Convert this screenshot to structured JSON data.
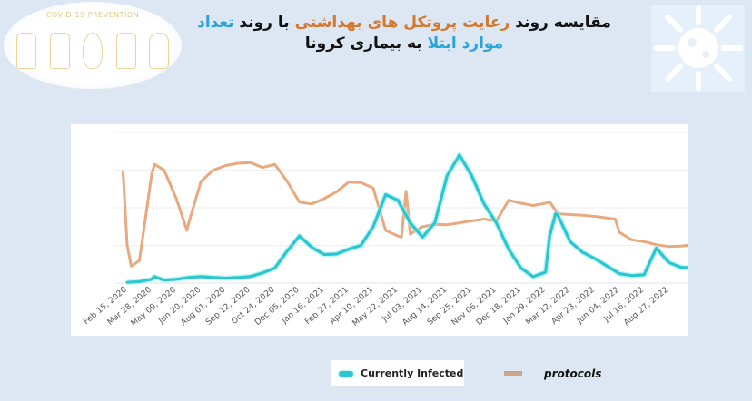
{
  "logo": {
    "text": "COVID-19 PREVENTION",
    "icons": [
      "hand-sanitizer-icon",
      "keep-distance-icon",
      "face-mask-icon",
      "disinfect-surface-icon",
      "hand-stop-icon"
    ]
  },
  "decor": {
    "icon": "virus-icon"
  },
  "title": {
    "part1": "مقایسه روند ",
    "part2": "رعایت پروتکل های بهداشتی",
    "part3": " با روند ",
    "part4": "تعداد موارد ابتلا",
    "part5": " به بیماری کرونا"
  },
  "colors": {
    "infected": "#2bc6cf",
    "protocols": "#e8a97e",
    "title_orange": "#d4782e",
    "title_blue": "#2ba3d9",
    "background": "#dce7f3"
  },
  "chart_data": {
    "type": "line",
    "title": "",
    "xlabel": "",
    "ylabel": "",
    "grid": true,
    "y_ticks_shown": false,
    "ylim": [
      0,
      4
    ],
    "legend_placement": "bottom",
    "x_ticks": [
      "Feb 15, 2020",
      "Mar 28, 2020",
      "May 09, 2020",
      "Jun 20, 2020",
      "Aug 01, 2020",
      "Sep 12, 2020",
      "Oct 24, 2020",
      "Dec 05, 2020",
      "Jan 16, 2021",
      "Feb 27, 2021",
      "Apr 10, 2021",
      "May 22, 2021",
      "Jul 03, 2021",
      "Aug 14, 2021",
      "Sep 25, 2021",
      "Nov 06, 2021",
      "Dec 18, 2021",
      "Jan 29, 2022",
      "Mar 12, 2022",
      "Apr 23, 2022",
      "Jun 04, 2022",
      "Jul 16, 2022",
      "Aug 27, 2022"
    ],
    "series": [
      {
        "name": "Currently Infected",
        "color": "#2bc6cf",
        "points": [
          [
            "2020-02-15",
            0.02
          ],
          [
            "2020-03-07",
            0.04
          ],
          [
            "2020-03-28",
            0.1
          ],
          [
            "2020-04-01",
            0.17
          ],
          [
            "2020-04-18",
            0.08
          ],
          [
            "2020-05-09",
            0.1
          ],
          [
            "2020-05-30",
            0.15
          ],
          [
            "2020-06-20",
            0.17
          ],
          [
            "2020-07-11",
            0.15
          ],
          [
            "2020-08-01",
            0.13
          ],
          [
            "2020-08-22",
            0.15
          ],
          [
            "2020-09-12",
            0.17
          ],
          [
            "2020-10-03",
            0.27
          ],
          [
            "2020-10-24",
            0.4
          ],
          [
            "2020-11-14",
            0.85
          ],
          [
            "2020-12-05",
            1.25
          ],
          [
            "2020-12-26",
            0.95
          ],
          [
            "2021-01-16",
            0.76
          ],
          [
            "2021-02-06",
            0.77
          ],
          [
            "2021-02-27",
            0.9
          ],
          [
            "2021-03-20",
            1.0
          ],
          [
            "2021-04-10",
            1.5
          ],
          [
            "2021-05-01",
            2.35
          ],
          [
            "2021-05-22",
            2.2
          ],
          [
            "2021-06-12",
            1.6
          ],
          [
            "2021-07-03",
            1.22
          ],
          [
            "2021-07-24",
            1.6
          ],
          [
            "2021-08-14",
            2.85
          ],
          [
            "2021-09-04",
            3.4
          ],
          [
            "2021-09-25",
            2.85
          ],
          [
            "2021-10-16",
            2.1
          ],
          [
            "2021-11-06",
            1.6
          ],
          [
            "2021-11-27",
            0.9
          ],
          [
            "2021-12-18",
            0.4
          ],
          [
            "2022-01-08",
            0.17
          ],
          [
            "2022-01-29",
            0.29
          ],
          [
            "2022-02-05",
            1.25
          ],
          [
            "2022-02-15",
            1.84
          ],
          [
            "2022-02-19",
            1.8
          ],
          [
            "2022-03-12",
            1.1
          ],
          [
            "2022-04-02",
            0.82
          ],
          [
            "2022-04-23",
            0.65
          ],
          [
            "2022-05-14",
            0.45
          ],
          [
            "2022-06-04",
            0.25
          ],
          [
            "2022-06-25",
            0.2
          ],
          [
            "2022-07-16",
            0.22
          ],
          [
            "2022-08-06",
            0.93
          ],
          [
            "2022-08-27",
            0.55
          ],
          [
            "2022-09-17",
            0.42
          ],
          [
            "2022-09-28",
            0.41
          ]
        ]
      },
      {
        "name": "protocols",
        "color": "#e8a97e",
        "points": [
          [
            "2020-02-08",
            2.95
          ],
          [
            "2020-02-15",
            1.0
          ],
          [
            "2020-02-22",
            0.45
          ],
          [
            "2020-03-07",
            0.6
          ],
          [
            "2020-03-28",
            2.9
          ],
          [
            "2020-04-02",
            3.15
          ],
          [
            "2020-04-18",
            3.0
          ],
          [
            "2020-05-09",
            2.24
          ],
          [
            "2020-05-27",
            1.4
          ],
          [
            "2020-05-30",
            1.6
          ],
          [
            "2020-06-20",
            2.7
          ],
          [
            "2020-07-11",
            3.0
          ],
          [
            "2020-08-01",
            3.12
          ],
          [
            "2020-08-22",
            3.18
          ],
          [
            "2020-09-12",
            3.2
          ],
          [
            "2020-10-03",
            3.07
          ],
          [
            "2020-10-24",
            3.15
          ],
          [
            "2020-11-14",
            2.7
          ],
          [
            "2020-12-05",
            2.15
          ],
          [
            "2020-12-26",
            2.1
          ],
          [
            "2021-01-16",
            2.24
          ],
          [
            "2021-02-06",
            2.42
          ],
          [
            "2021-02-27",
            2.68
          ],
          [
            "2021-03-20",
            2.67
          ],
          [
            "2021-04-10",
            2.52
          ],
          [
            "2021-05-01",
            1.4
          ],
          [
            "2021-05-22",
            1.25
          ],
          [
            "2021-05-28",
            1.22
          ],
          [
            "2021-06-05",
            2.44
          ],
          [
            "2021-06-12",
            1.3
          ],
          [
            "2021-07-03",
            1.5
          ],
          [
            "2021-07-24",
            1.56
          ],
          [
            "2021-08-14",
            1.55
          ],
          [
            "2021-09-04",
            1.6
          ],
          [
            "2021-09-25",
            1.65
          ],
          [
            "2021-10-16",
            1.7
          ],
          [
            "2021-11-06",
            1.65
          ],
          [
            "2021-11-27",
            2.2
          ],
          [
            "2021-12-18",
            2.12
          ],
          [
            "2022-01-08",
            2.06
          ],
          [
            "2022-01-29",
            2.12
          ],
          [
            "2022-02-05",
            2.16
          ],
          [
            "2022-02-19",
            1.84
          ],
          [
            "2022-03-12",
            1.82
          ],
          [
            "2022-04-02",
            1.8
          ],
          [
            "2022-04-23",
            1.77
          ],
          [
            "2022-05-14",
            1.73
          ],
          [
            "2022-05-28",
            1.7
          ],
          [
            "2022-06-04",
            1.35
          ],
          [
            "2022-06-25",
            1.15
          ],
          [
            "2022-07-16",
            1.1
          ],
          [
            "2022-08-06",
            1.02
          ],
          [
            "2022-08-27",
            0.97
          ],
          [
            "2022-09-17",
            0.98
          ],
          [
            "2022-09-28",
            1.0
          ]
        ]
      }
    ]
  },
  "legend": {
    "infected_label": "Currently Infected",
    "protocols_label": "protocols"
  }
}
